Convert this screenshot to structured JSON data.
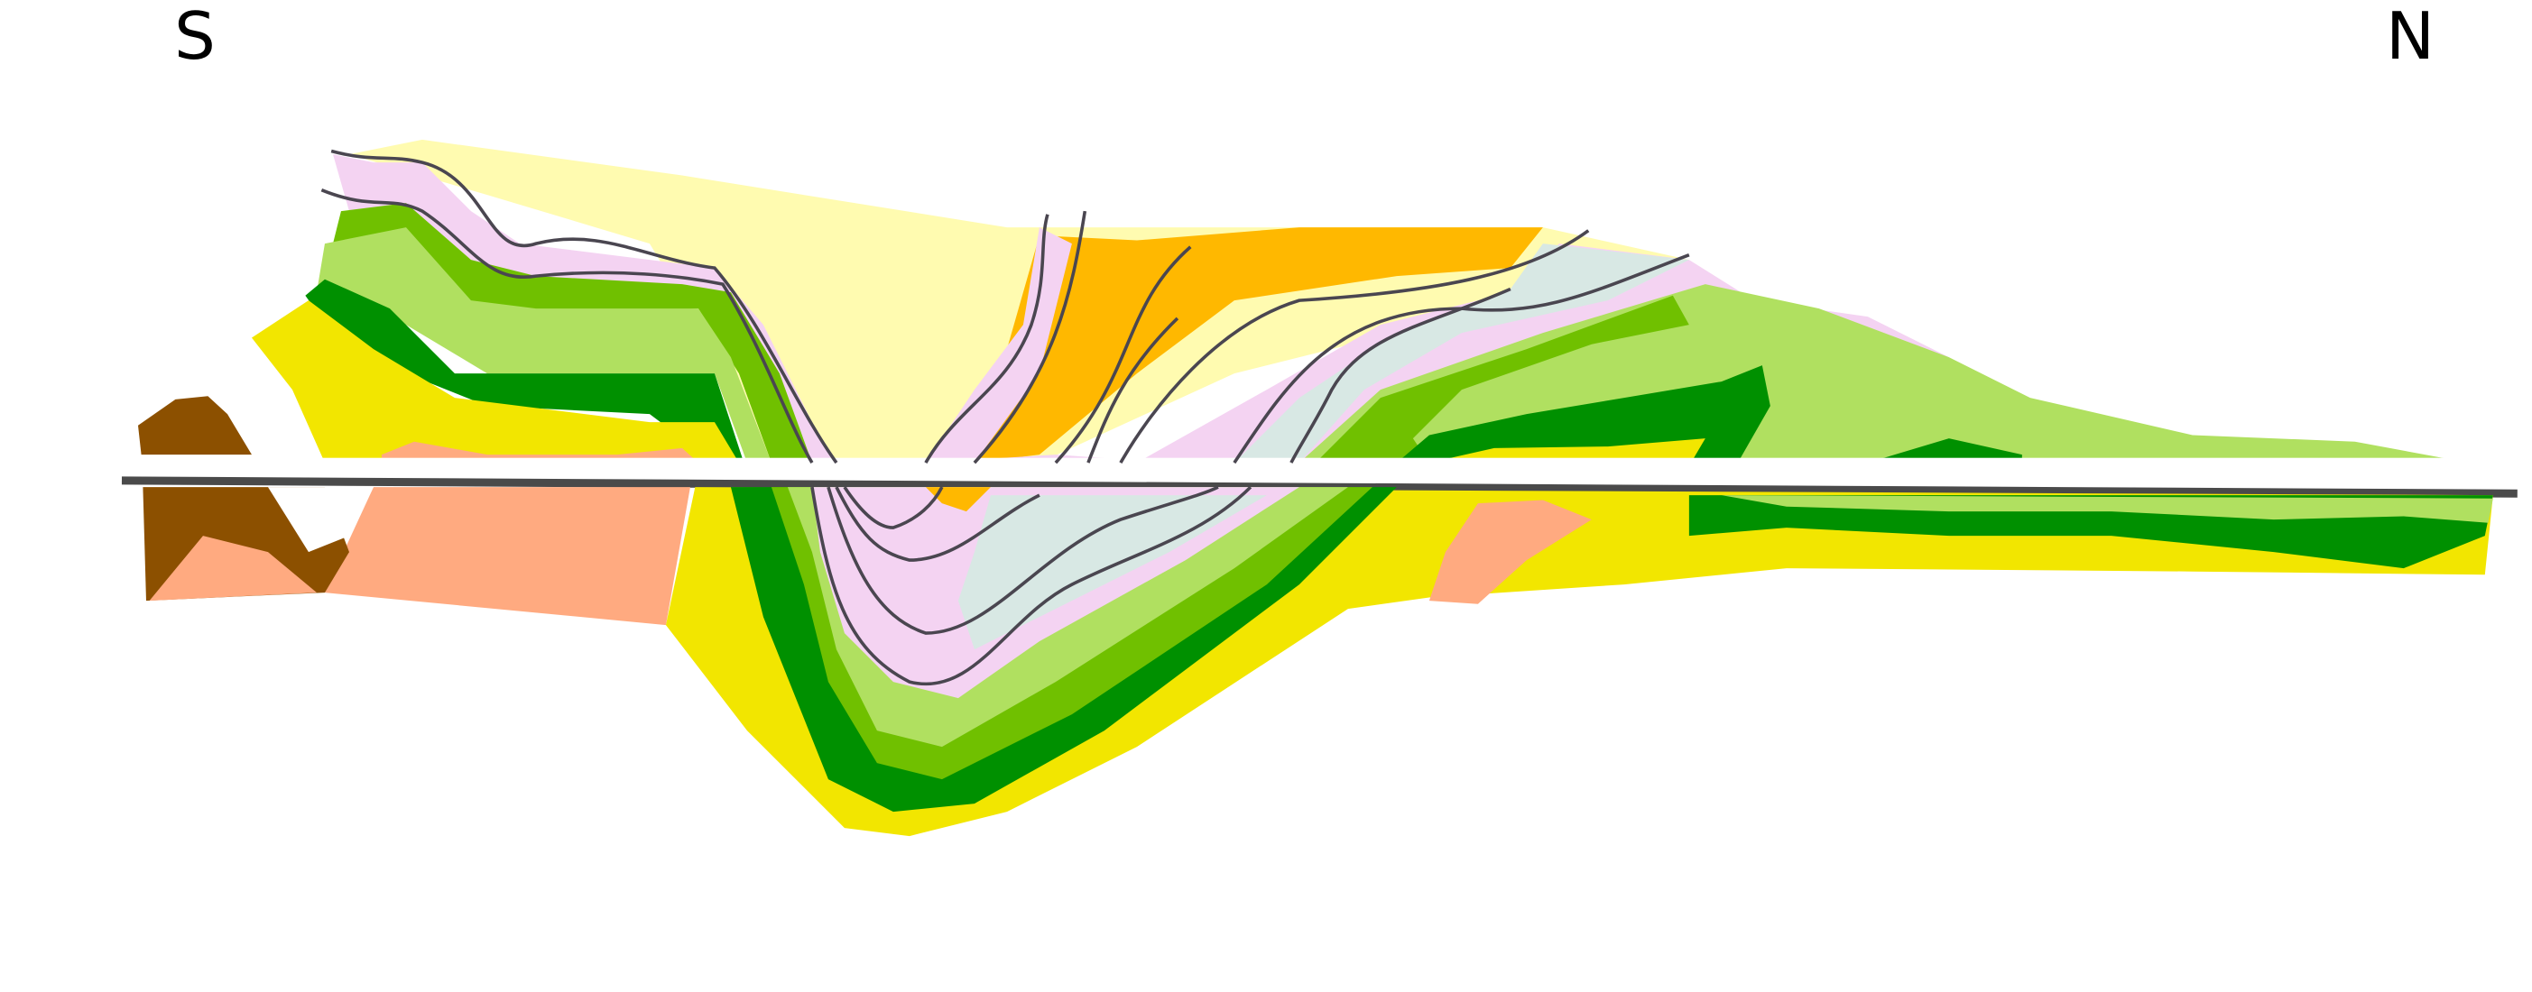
{
  "labels": {
    "left": "S",
    "right": "N"
  }
}
